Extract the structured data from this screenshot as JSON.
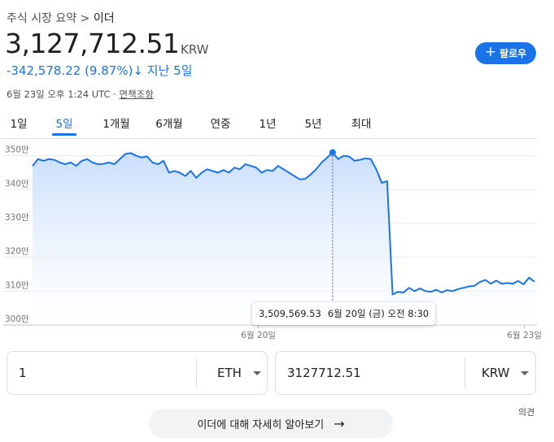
{
  "header": {
    "breadcrumb_root": "주식 시장 요약",
    "breadcrumb_sep": ">",
    "breadcrumb_current": "이더",
    "price": "3,127,712.51",
    "currency": "KRW",
    "change": "-342,578.22 (9.87%)",
    "change_arrow": "↓",
    "change_period": "지난 5일",
    "timestamp": "6월 23일 오후 1:24 UTC ·",
    "disclaimer_link": "면책조항",
    "follow_label": "팔로우"
  },
  "tabs": [
    {
      "label": "1일"
    },
    {
      "label": "5일"
    },
    {
      "label": "1개월"
    },
    {
      "label": "6개월"
    },
    {
      "label": "연중"
    },
    {
      "label": "1년"
    },
    {
      "label": "5년"
    },
    {
      "label": "최대"
    }
  ],
  "active_tab": "5일",
  "colors": {
    "accent": "#1a73e8",
    "line": "#1a73e8",
    "grid": "#e8eaed",
    "fill_top": "#c6dcfb"
  },
  "chart_data": {
    "type": "area",
    "title": "",
    "xlabel": "",
    "ylabel": "",
    "ylim": [
      3000000,
      3540000
    ],
    "y_ticks": [
      3500000,
      3400000,
      3300000,
      3200000,
      3100000,
      3000000
    ],
    "y_tick_labels": [
      "350만",
      "340만",
      "330만",
      "320만",
      "310만",
      "300만"
    ],
    "x_tick_labels": [
      "6월 20일",
      "6월 23일"
    ],
    "x_tick_positions": [
      0.45,
      0.98
    ],
    "grid": true,
    "series": [
      {
        "values": [
          3470000,
          3490000,
          3485000,
          3490000,
          3488000,
          3480000,
          3475000,
          3480000,
          3470000,
          3485000,
          3490000,
          3480000,
          3475000,
          3476000,
          3480000,
          3475000,
          3490000,
          3505000,
          3508000,
          3500000,
          3495000,
          3498000,
          3480000,
          3475000,
          3485000,
          3450000,
          3455000,
          3450000,
          3440000,
          3455000,
          3435000,
          3450000,
          3460000,
          3455000,
          3450000,
          3458000,
          3450000,
          3465000,
          3460000,
          3475000,
          3470000,
          3465000,
          3450000,
          3458000,
          3455000,
          3470000,
          3460000,
          3450000,
          3440000,
          3430000,
          3432000,
          3445000,
          3460000,
          3480000,
          3495000,
          3509569,
          3490000,
          3500000,
          3498000,
          3485000,
          3488000,
          3492000,
          3490000,
          3460000,
          3420000,
          3425000,
          3090000,
          3098000,
          3096000,
          3110000,
          3100000,
          3108000,
          3100000,
          3098000,
          3104000,
          3096000,
          3103000,
          3100000,
          3106000,
          3110000,
          3114000,
          3116000,
          3127000,
          3133000,
          3122000,
          3131000,
          3122000,
          3124000,
          3122000,
          3130000,
          3120000,
          3140000,
          3127712
        ]
      }
    ],
    "highlight_index": 55,
    "tooltip": {
      "value": "3,509,569.53",
      "datetime": "6월 20일 (금) 오전 8:30"
    }
  },
  "converter": {
    "from_value": "1",
    "from_unit": "ETH",
    "to_value": "3127712.51",
    "to_unit": "KRW"
  },
  "feedback_label": "의견",
  "more_button_label": "이더에 대해 자세히 알아보기",
  "more_button_arrow": "→"
}
